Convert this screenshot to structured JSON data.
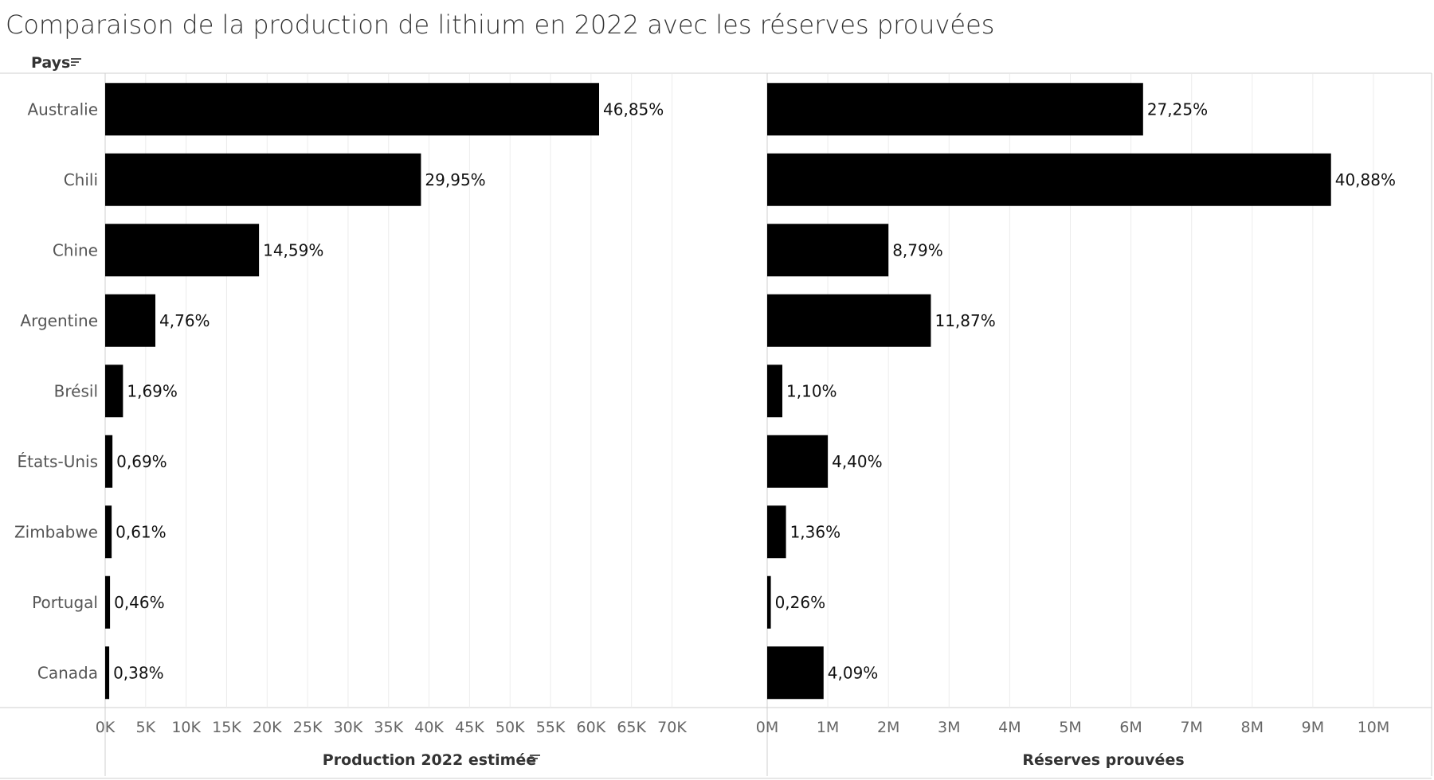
{
  "title": "Comparaison de la production de lithium en 2022 avec les réserves prouvées",
  "row_header": "Pays",
  "sort_icon": "sort-icon",
  "colors": {
    "bar": "#000000",
    "grid": "#ececec",
    "axis": "#cfcfcf",
    "text": "#333333"
  },
  "chart_data": [
    {
      "type": "bar",
      "orientation": "horizontal",
      "categories": [
        "Australie",
        "Chili",
        "Chine",
        "Argentine",
        "Brésil",
        "États-Unis",
        "Zimbabwe",
        "Portugal",
        "Canada"
      ],
      "values": [
        61000,
        39000,
        19000,
        6200,
        2200,
        900,
        800,
        600,
        500
      ],
      "data_labels": [
        "46,85%",
        "29,95%",
        "14,59%",
        "4,76%",
        "1,69%",
        "0,69%",
        "0,61%",
        "0,46%",
        "0,38%"
      ],
      "xlabel": "Production 2022 estimée",
      "xlim": [
        0,
        70000
      ],
      "ticks": [
        0,
        5000,
        10000,
        15000,
        20000,
        25000,
        30000,
        35000,
        40000,
        45000,
        50000,
        55000,
        60000,
        65000,
        70000
      ],
      "tick_labels": [
        "0K",
        "5K",
        "10K",
        "15K",
        "20K",
        "25K",
        "30K",
        "35K",
        "40K",
        "45K",
        "50K",
        "55K",
        "60K",
        "65K",
        "70K"
      ],
      "grid": true
    },
    {
      "type": "bar",
      "orientation": "horizontal",
      "categories": [
        "Australie",
        "Chili",
        "Chine",
        "Argentine",
        "Brésil",
        "États-Unis",
        "Zimbabwe",
        "Portugal",
        "Canada"
      ],
      "values": [
        6200000,
        9300000,
        2000000,
        2700000,
        250000,
        1000000,
        310000,
        60000,
        930000
      ],
      "data_labels": [
        "27,25%",
        "40,88%",
        "8,79%",
        "11,87%",
        "1,10%",
        "4,40%",
        "1,36%",
        "0,26%",
        "4,09%"
      ],
      "xlabel": "Réserves prouvées",
      "xlim": [
        0,
        10500000
      ],
      "ticks": [
        0,
        1000000,
        2000000,
        3000000,
        4000000,
        5000000,
        6000000,
        7000000,
        8000000,
        9000000,
        10000000
      ],
      "tick_labels": [
        "0M",
        "1M",
        "2M",
        "3M",
        "4M",
        "5M",
        "6M",
        "7M",
        "8M",
        "9M",
        "10M"
      ],
      "grid": true
    }
  ]
}
